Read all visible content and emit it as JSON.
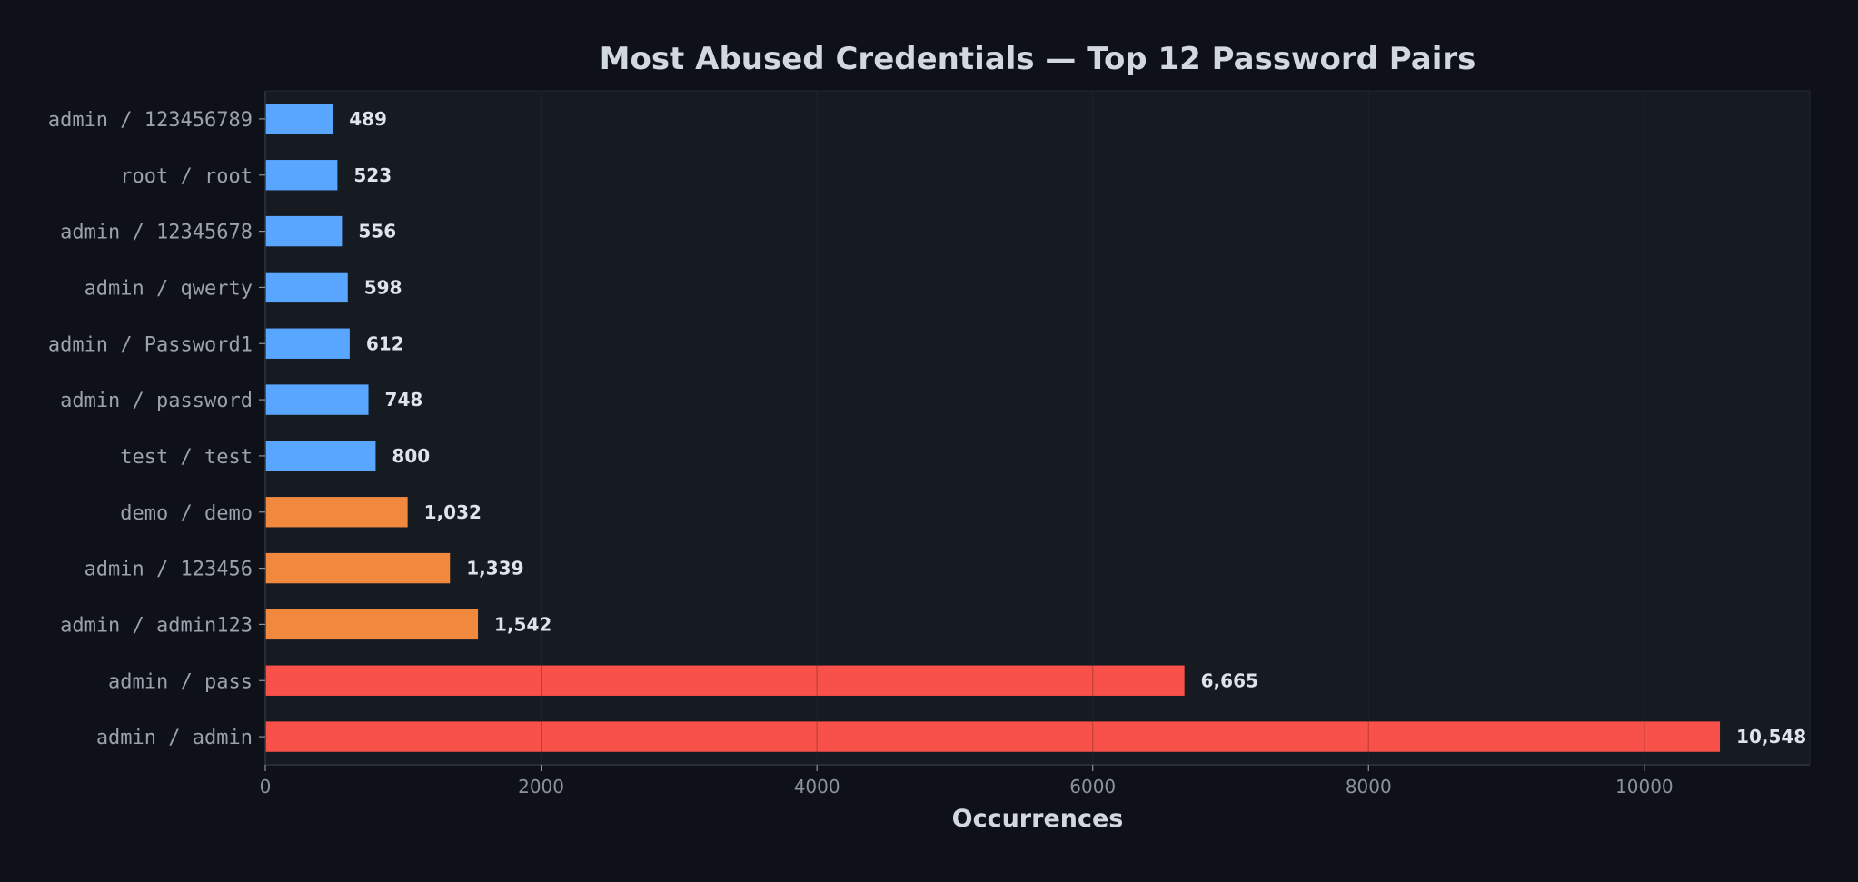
{
  "chart_data": {
    "type": "bar",
    "orientation": "horizontal",
    "title": "Most Abused Credentials — Top 12 Password Pairs",
    "xlabel": "Occurrences",
    "ylabel": "",
    "xlim": [
      0,
      11200
    ],
    "xticks": [
      0,
      2000,
      4000,
      6000,
      8000,
      10000
    ],
    "xtick_labels": [
      "0",
      "2000",
      "4000",
      "6000",
      "8000",
      "10000"
    ],
    "grid": "vertical",
    "legend": "none",
    "categories": [
      "admin / 123456789",
      "root / root",
      "admin / 12345678",
      "admin / qwerty",
      "admin / Password1",
      "admin / password",
      "test / test",
      "demo / demo",
      "admin / 123456",
      "admin / admin123",
      "admin / pass",
      "admin / admin"
    ],
    "values": [
      489,
      523,
      556,
      598,
      612,
      748,
      800,
      1032,
      1339,
      1542,
      6665,
      10548
    ],
    "value_labels": [
      "489",
      "523",
      "556",
      "598",
      "612",
      "748",
      "800",
      "1,032",
      "1,339",
      "1,542",
      "6,665",
      "10,548"
    ],
    "bar_colors": [
      "#58a6ff",
      "#58a6ff",
      "#58a6ff",
      "#58a6ff",
      "#58a6ff",
      "#58a6ff",
      "#58a6ff",
      "#f0883e",
      "#f0883e",
      "#f0883e",
      "#f85149",
      "#f85149"
    ],
    "colors": {
      "background": "#0e1117",
      "plot_background": "#161b22",
      "grid": "#262c34",
      "axis": "#30363d",
      "text": "#d2d8df"
    }
  }
}
